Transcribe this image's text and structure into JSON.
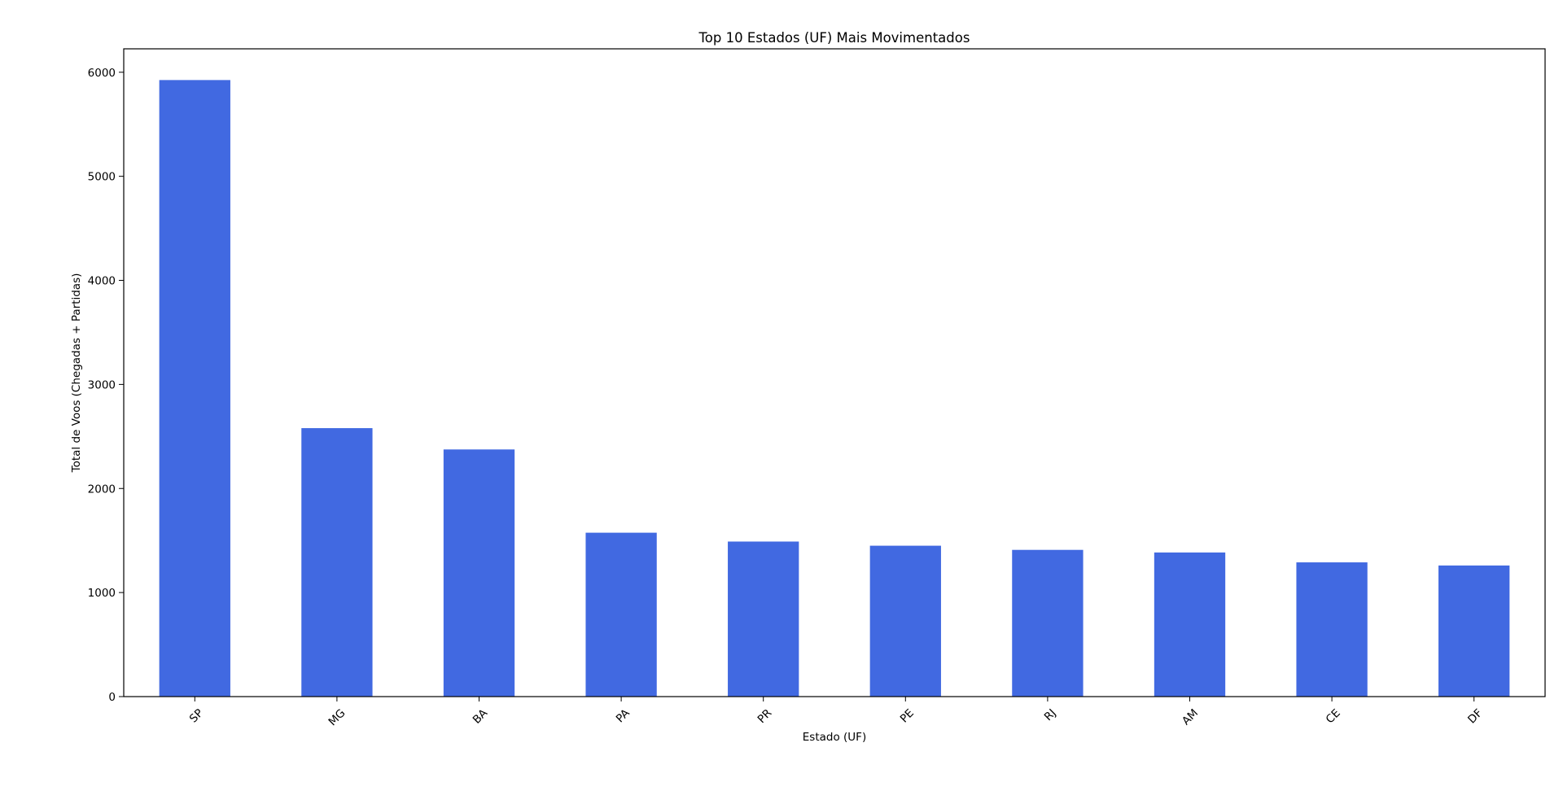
{
  "chart_data": {
    "type": "bar",
    "title": "Top 10 Estados (UF) Mais Movimentados",
    "xlabel": "Estado (UF)",
    "ylabel": "Total de Voos (Chegadas + Partidas)",
    "categories": [
      "SP",
      "MG",
      "BA",
      "PA",
      "PR",
      "PE",
      "RJ",
      "AM",
      "CE",
      "DF"
    ],
    "values": [
      5925,
      2580,
      2375,
      1575,
      1490,
      1450,
      1410,
      1385,
      1290,
      1260
    ],
    "ylim": [
      0,
      6225
    ],
    "yticks": [
      0,
      1000,
      2000,
      3000,
      4000,
      5000,
      6000
    ],
    "bar_color": "#4169e1",
    "grid": false,
    "legend": false
  }
}
